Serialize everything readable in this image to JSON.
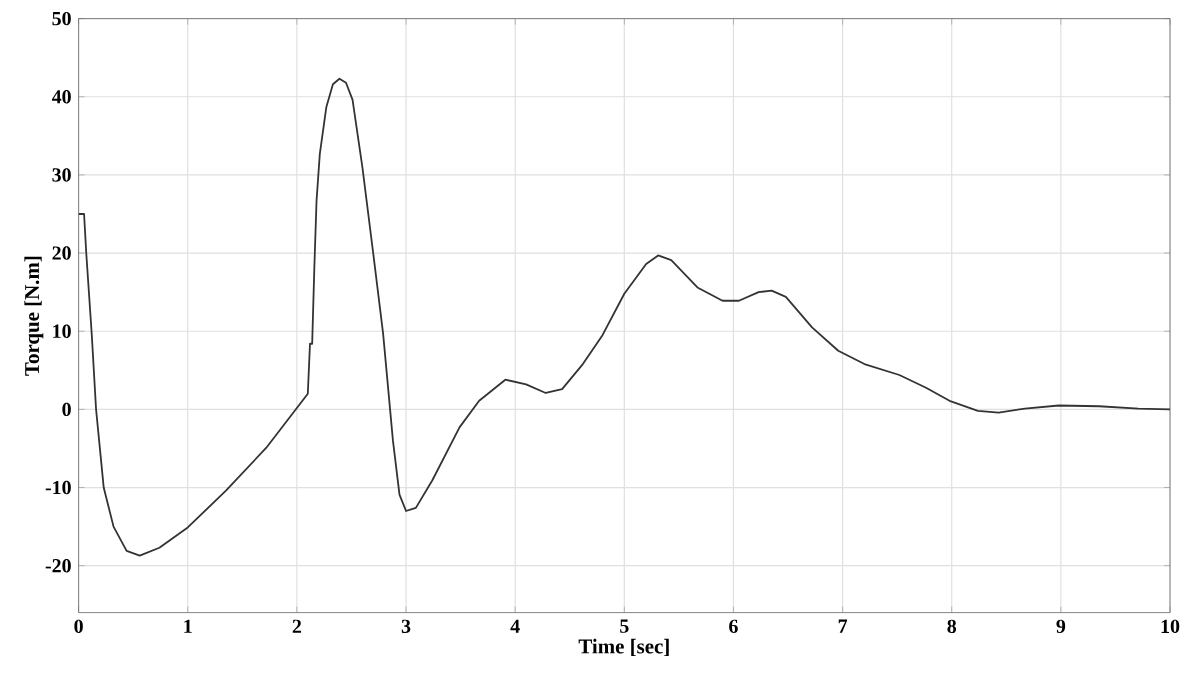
{
  "chart_data": {
    "type": "line",
    "xlabel": "Time [sec]",
    "ylabel": "Torque [N.m]",
    "color": "#333333",
    "grid": true,
    "xlim": [
      0,
      10
    ],
    "ylim": [
      -26,
      50
    ],
    "xticks": [
      0,
      1,
      2,
      3,
      4,
      5,
      6,
      7,
      8,
      9,
      10
    ],
    "yticks": [
      -20,
      -10,
      0,
      10,
      20,
      30,
      40,
      50
    ],
    "x": [
      0,
      0.05,
      0.07,
      0.12,
      0.16,
      0.23,
      0.32,
      0.44,
      0.56,
      0.74,
      1.0,
      1.35,
      1.72,
      2.1,
      2.12,
      2.14,
      2.16,
      2.18,
      2.21,
      2.27,
      2.33,
      2.39,
      2.45,
      2.51,
      2.6,
      2.7,
      2.79,
      2.88,
      2.94,
      3.0,
      3.09,
      3.24,
      3.49,
      3.67,
      3.91,
      4.1,
      4.28,
      4.43,
      4.62,
      4.8,
      5.0,
      5.2,
      5.31,
      5.43,
      5.67,
      5.9,
      6.05,
      6.23,
      6.35,
      6.48,
      6.72,
      6.96,
      7.2,
      7.52,
      7.76,
      7.98,
      8.24,
      8.43,
      8.67,
      8.98,
      9.35,
      9.71,
      10
    ],
    "values": [
      25.0,
      25.0,
      20,
      9.7,
      0,
      -10,
      -15,
      -18.1,
      -18.7,
      -17.7,
      -15.1,
      -10.4,
      -4.9,
      2.0,
      8.4,
      8.4,
      18.2,
      26.7,
      32.7,
      38.7,
      41.6,
      42.3,
      41.8,
      39.6,
      31,
      19.9,
      9.7,
      -4,
      -10.9,
      -13,
      -12.6,
      -9.1,
      -2.3,
      1.1,
      3.8,
      3.2,
      2.1,
      2.6,
      5.8,
      9.5,
      14.8,
      18.6,
      19.7,
      19.1,
      15.6,
      13.9,
      13.9,
      15.0,
      15.2,
      14.4,
      10.5,
      7.5,
      5.8,
      4.4,
      2.8,
      1.1,
      -0.2,
      -0.4,
      0.1,
      0.5,
      0.4,
      0.1,
      0
    ]
  }
}
